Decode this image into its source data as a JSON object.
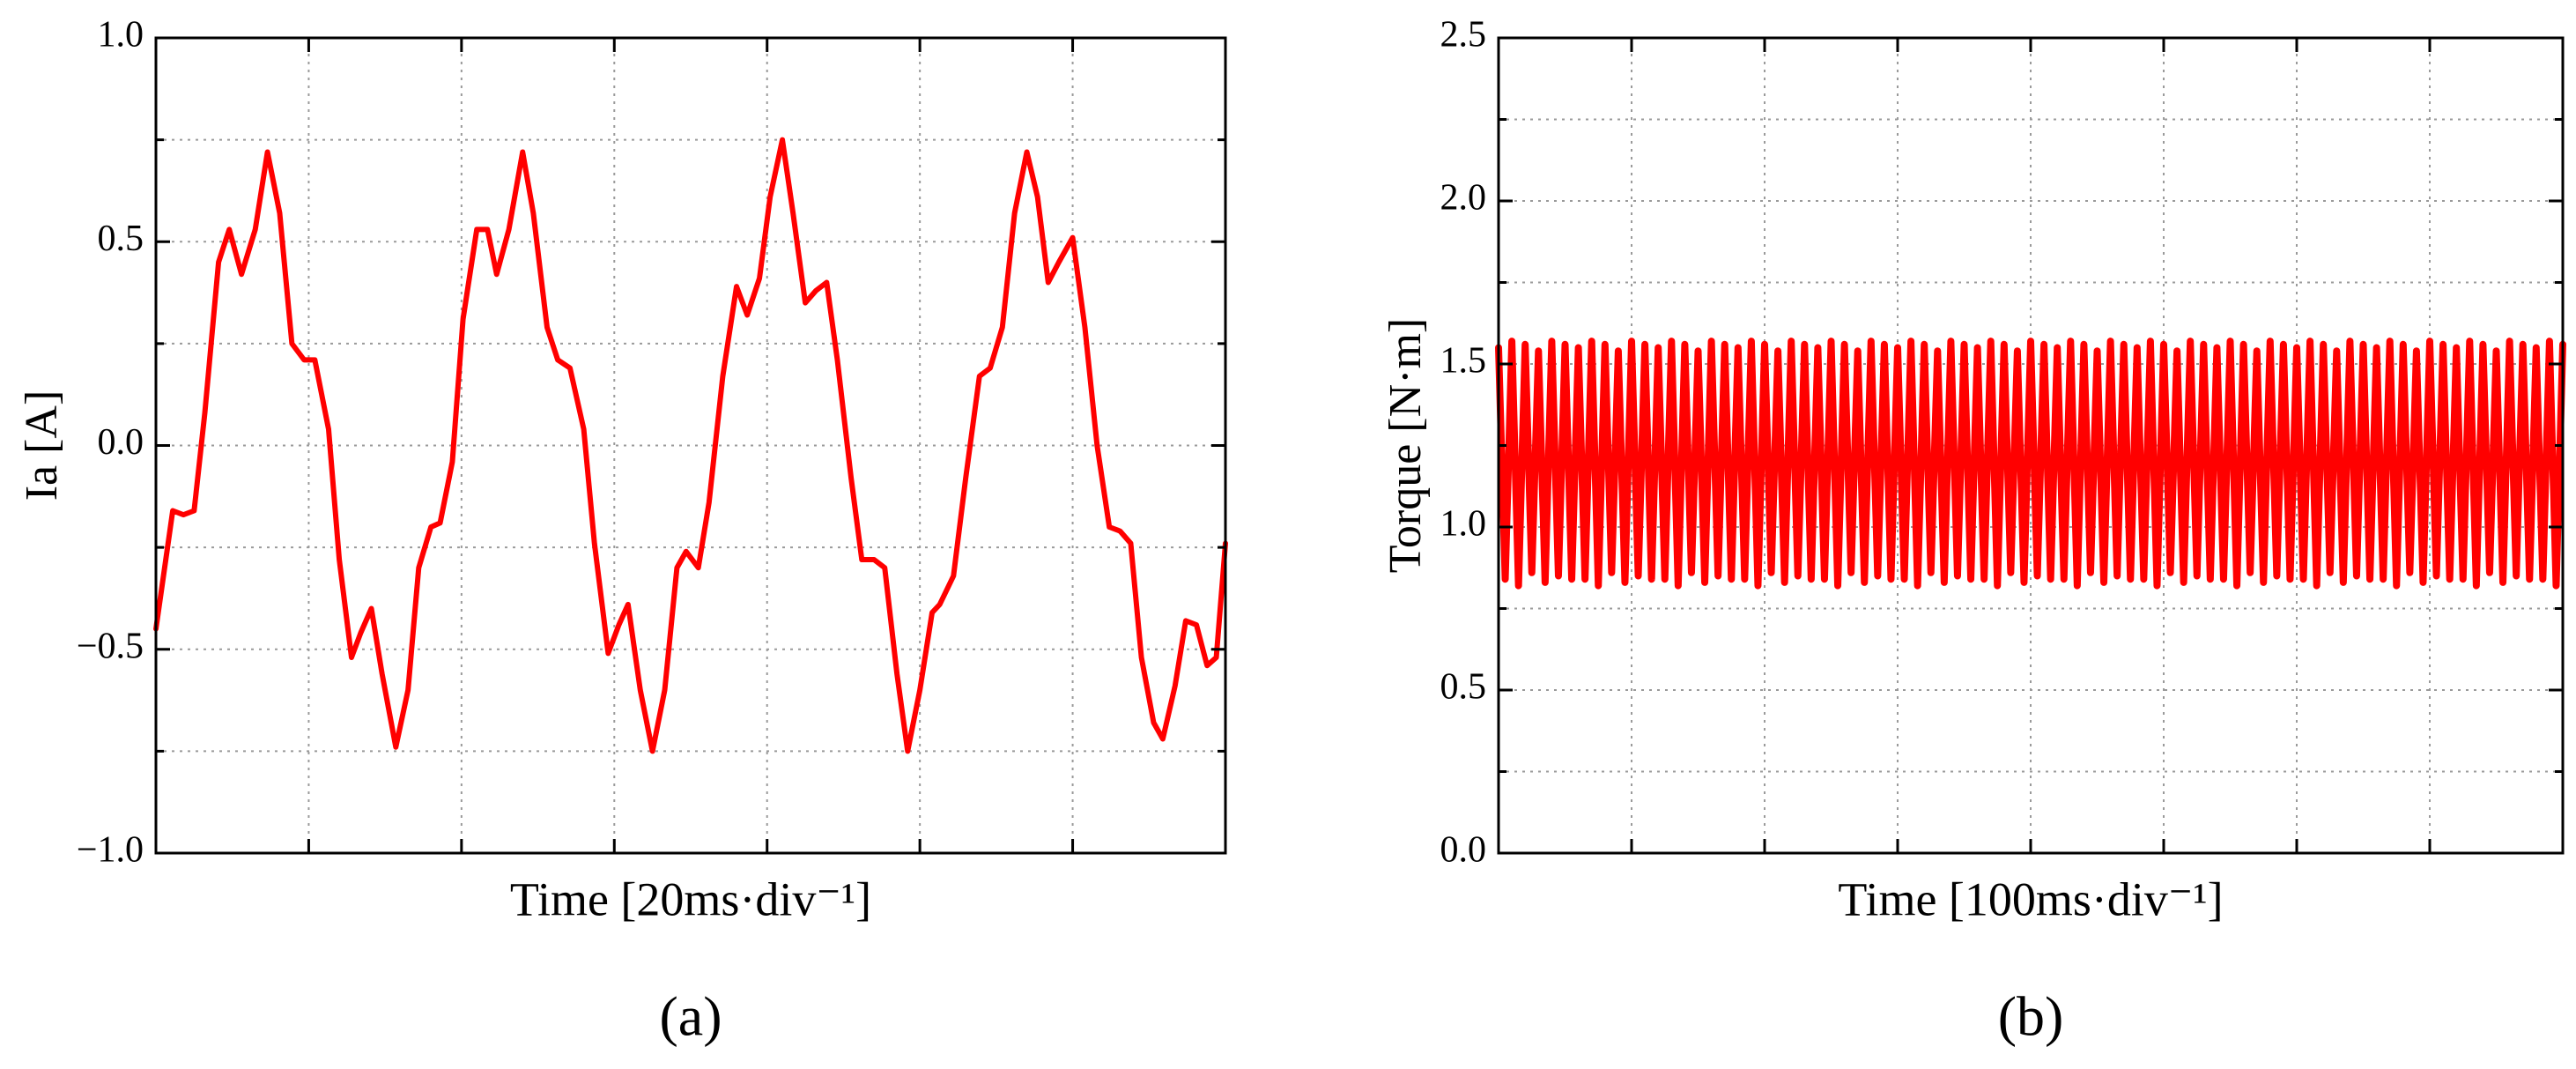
{
  "chart_data": [
    {
      "type": "line",
      "caption": "(a)",
      "xlabel": "Time [20ms·div⁻¹]",
      "ylabel": "Ia [A]",
      "xlim": [
        0,
        7
      ],
      "xticks": [
        0,
        1,
        2,
        3,
        4,
        5,
        6,
        7
      ],
      "ylim": [
        -1,
        1
      ],
      "yticks": [
        {
          "value": -1,
          "label": "−1.0"
        },
        {
          "value": -0.5,
          "label": "−0.5"
        },
        {
          "value": 0,
          "label": "0.0"
        },
        {
          "value": 0.5,
          "label": "0.5"
        },
        {
          "value": 1,
          "label": "1.0"
        }
      ],
      "minor_yticks": [
        -0.75,
        -0.25,
        0.25,
        0.75
      ],
      "grid": true,
      "series": [
        {
          "color": "#ff0000",
          "x": [
            0,
            0.11,
            0.18,
            0.25,
            0.32,
            0.41,
            0.48,
            0.56,
            0.65,
            0.73,
            0.81,
            0.89,
            0.97,
            1.04,
            1.13,
            1.2,
            1.28,
            1.34,
            1.41,
            1.48,
            1.57,
            1.65,
            1.72,
            1.8,
            1.86,
            1.94,
            2.01,
            2.1,
            2.17,
            2.23,
            2.31,
            2.4,
            2.47,
            2.56,
            2.63,
            2.71,
            2.8,
            2.87,
            2.96,
            3.03,
            3.09,
            3.17,
            3.25,
            3.33,
            3.41,
            3.47,
            3.55,
            3.62,
            3.71,
            3.8,
            3.87,
            3.95,
            4.02,
            4.1,
            4.17,
            4.25,
            4.32,
            4.39,
            4.46,
            4.55,
            4.62,
            4.7,
            4.77,
            4.85,
            4.92,
            5.0,
            5.08,
            5.13,
            5.22,
            5.3,
            5.39,
            5.46,
            5.54,
            5.62,
            5.7,
            5.77,
            5.84,
            5.91,
            6.0,
            6.08,
            6.16,
            6.24,
            6.31,
            6.38,
            6.45,
            6.53,
            6.59,
            6.67,
            6.74,
            6.81,
            6.88,
            6.94,
            7.0
          ],
          "values": [
            -0.45,
            -0.16,
            -0.17,
            -0.16,
            0.08,
            0.45,
            0.53,
            0.42,
            0.53,
            0.72,
            0.57,
            0.25,
            0.21,
            0.21,
            0.04,
            -0.28,
            -0.52,
            -0.46,
            -0.4,
            -0.56,
            -0.74,
            -0.6,
            -0.3,
            -0.2,
            -0.19,
            -0.04,
            0.31,
            0.53,
            0.53,
            0.42,
            0.53,
            0.72,
            0.57,
            0.29,
            0.21,
            0.19,
            0.04,
            -0.24,
            -0.51,
            -0.44,
            -0.39,
            -0.6,
            -0.75,
            -0.6,
            -0.3,
            -0.26,
            -0.3,
            -0.14,
            0.17,
            0.39,
            0.32,
            0.41,
            0.61,
            0.75,
            0.57,
            0.35,
            0.38,
            0.4,
            0.21,
            -0.08,
            -0.28,
            -0.28,
            -0.3,
            -0.56,
            -0.75,
            -0.6,
            -0.41,
            -0.39,
            -0.32,
            -0.08,
            0.17,
            0.19,
            0.29,
            0.57,
            0.72,
            0.61,
            0.4,
            0.45,
            0.51,
            0.29,
            0.0,
            -0.2,
            -0.21,
            -0.24,
            -0.52,
            -0.68,
            -0.72,
            -0.59,
            -0.43,
            -0.44,
            -0.54,
            -0.52,
            -0.24
          ]
        }
      ]
    },
    {
      "type": "line",
      "caption": "(b)",
      "xlabel": "Time [100ms·div⁻¹]",
      "ylabel": "Torque [N·m]",
      "xlim": [
        0,
        8
      ],
      "xticks": [
        0,
        1,
        2,
        3,
        4,
        5,
        6,
        7,
        8
      ],
      "ylim": [
        0,
        2.5
      ],
      "yticks": [
        {
          "value": 0,
          "label": "0.0"
        },
        {
          "value": 0.5,
          "label": "0.5"
        },
        {
          "value": 1,
          "label": "1.0"
        },
        {
          "value": 1.5,
          "label": "1.5"
        },
        {
          "value": 2,
          "label": "2.0"
        },
        {
          "value": 2.5,
          "label": "2.5"
        }
      ],
      "minor_yticks": [
        0.25,
        0.75,
        1.25,
        1.75,
        2.25
      ],
      "grid": true,
      "series": [
        {
          "color": "#ff0000",
          "x": [
            0,
            0.05,
            0.1,
            0.15,
            0.2,
            0.25,
            0.3,
            0.35,
            0.4,
            0.45,
            0.5,
            0.55,
            0.6,
            0.65,
            0.7,
            0.75,
            0.8,
            0.85,
            0.9,
            0.95,
            1,
            1.05,
            1.1,
            1.15,
            1.2,
            1.25,
            1.3,
            1.35,
            1.4,
            1.45,
            1.5,
            1.55,
            1.6,
            1.65,
            1.7,
            1.75,
            1.8,
            1.85,
            1.9,
            1.95,
            2,
            2.05,
            2.1,
            2.15,
            2.2,
            2.25,
            2.3,
            2.35,
            2.4,
            2.45,
            2.5,
            2.55,
            2.6,
            2.65,
            2.7,
            2.75,
            2.8,
            2.85,
            2.9,
            2.95,
            3,
            3.05,
            3.1,
            3.15,
            3.2,
            3.25,
            3.3,
            3.35,
            3.4,
            3.45,
            3.5,
            3.55,
            3.6,
            3.65,
            3.7,
            3.75,
            3.8,
            3.85,
            3.9,
            3.95,
            4,
            4.05,
            4.1,
            4.15,
            4.2,
            4.25,
            4.3,
            4.35,
            4.4,
            4.45,
            4.5,
            4.55,
            4.6,
            4.65,
            4.7,
            4.75,
            4.8,
            4.85,
            4.9,
            4.95,
            5,
            5.05,
            5.1,
            5.15,
            5.2,
            5.25,
            5.3,
            5.35,
            5.4,
            5.45,
            5.5,
            5.55,
            5.6,
            5.65,
            5.7,
            5.75,
            5.8,
            5.85,
            5.9,
            5.95,
            6,
            6.05,
            6.1,
            6.15,
            6.2,
            6.25,
            6.3,
            6.35,
            6.4,
            6.45,
            6.5,
            6.55,
            6.6,
            6.65,
            6.7,
            6.75,
            6.8,
            6.85,
            6.9,
            6.95,
            7,
            7.05,
            7.1,
            7.15,
            7.2,
            7.25,
            7.3,
            7.35,
            7.4,
            7.45,
            7.5,
            7.55,
            7.6,
            7.65,
            7.7,
            7.75,
            7.8,
            7.85,
            7.9,
            7.95,
            8
          ],
          "values": [
            1.55,
            0.84,
            1.57,
            0.82,
            1.56,
            0.86,
            1.54,
            0.83,
            1.57,
            0.85,
            1.56,
            0.84,
            1.55,
            0.84,
            1.57,
            0.82,
            1.56,
            0.86,
            1.54,
            0.83,
            1.57,
            0.85,
            1.56,
            0.84,
            1.55,
            0.84,
            1.57,
            0.82,
            1.56,
            0.86,
            1.54,
            0.83,
            1.57,
            0.85,
            1.56,
            0.84,
            1.55,
            0.84,
            1.57,
            0.82,
            1.56,
            0.86,
            1.54,
            0.83,
            1.57,
            0.85,
            1.56,
            0.84,
            1.55,
            0.84,
            1.57,
            0.82,
            1.56,
            0.86,
            1.54,
            0.83,
            1.57,
            0.85,
            1.56,
            0.84,
            1.55,
            0.84,
            1.57,
            0.82,
            1.56,
            0.86,
            1.54,
            0.83,
            1.57,
            0.85,
            1.56,
            0.84,
            1.55,
            0.84,
            1.57,
            0.82,
            1.56,
            0.86,
            1.54,
            0.83,
            1.57,
            0.85,
            1.56,
            0.84,
            1.55,
            0.84,
            1.57,
            0.82,
            1.56,
            0.86,
            1.54,
            0.83,
            1.57,
            0.85,
            1.56,
            0.84,
            1.55,
            0.84,
            1.57,
            0.82,
            1.56,
            0.86,
            1.54,
            0.83,
            1.57,
            0.85,
            1.56,
            0.84,
            1.55,
            0.84,
            1.57,
            0.82,
            1.56,
            0.86,
            1.54,
            0.83,
            1.57,
            0.85,
            1.56,
            0.84,
            1.55,
            0.84,
            1.57,
            0.82,
            1.56,
            0.86,
            1.54,
            0.83,
            1.57,
            0.85,
            1.56,
            0.84,
            1.55,
            0.84,
            1.57,
            0.82,
            1.56,
            0.86,
            1.54,
            0.83,
            1.57,
            0.85,
            1.56,
            0.84,
            1.55,
            0.84,
            1.57,
            0.82,
            1.56,
            0.86,
            1.54,
            0.83,
            1.57,
            0.85,
            1.56,
            0.84,
            1.55,
            0.84,
            1.57,
            0.82,
            1.56
          ]
        }
      ]
    }
  ]
}
